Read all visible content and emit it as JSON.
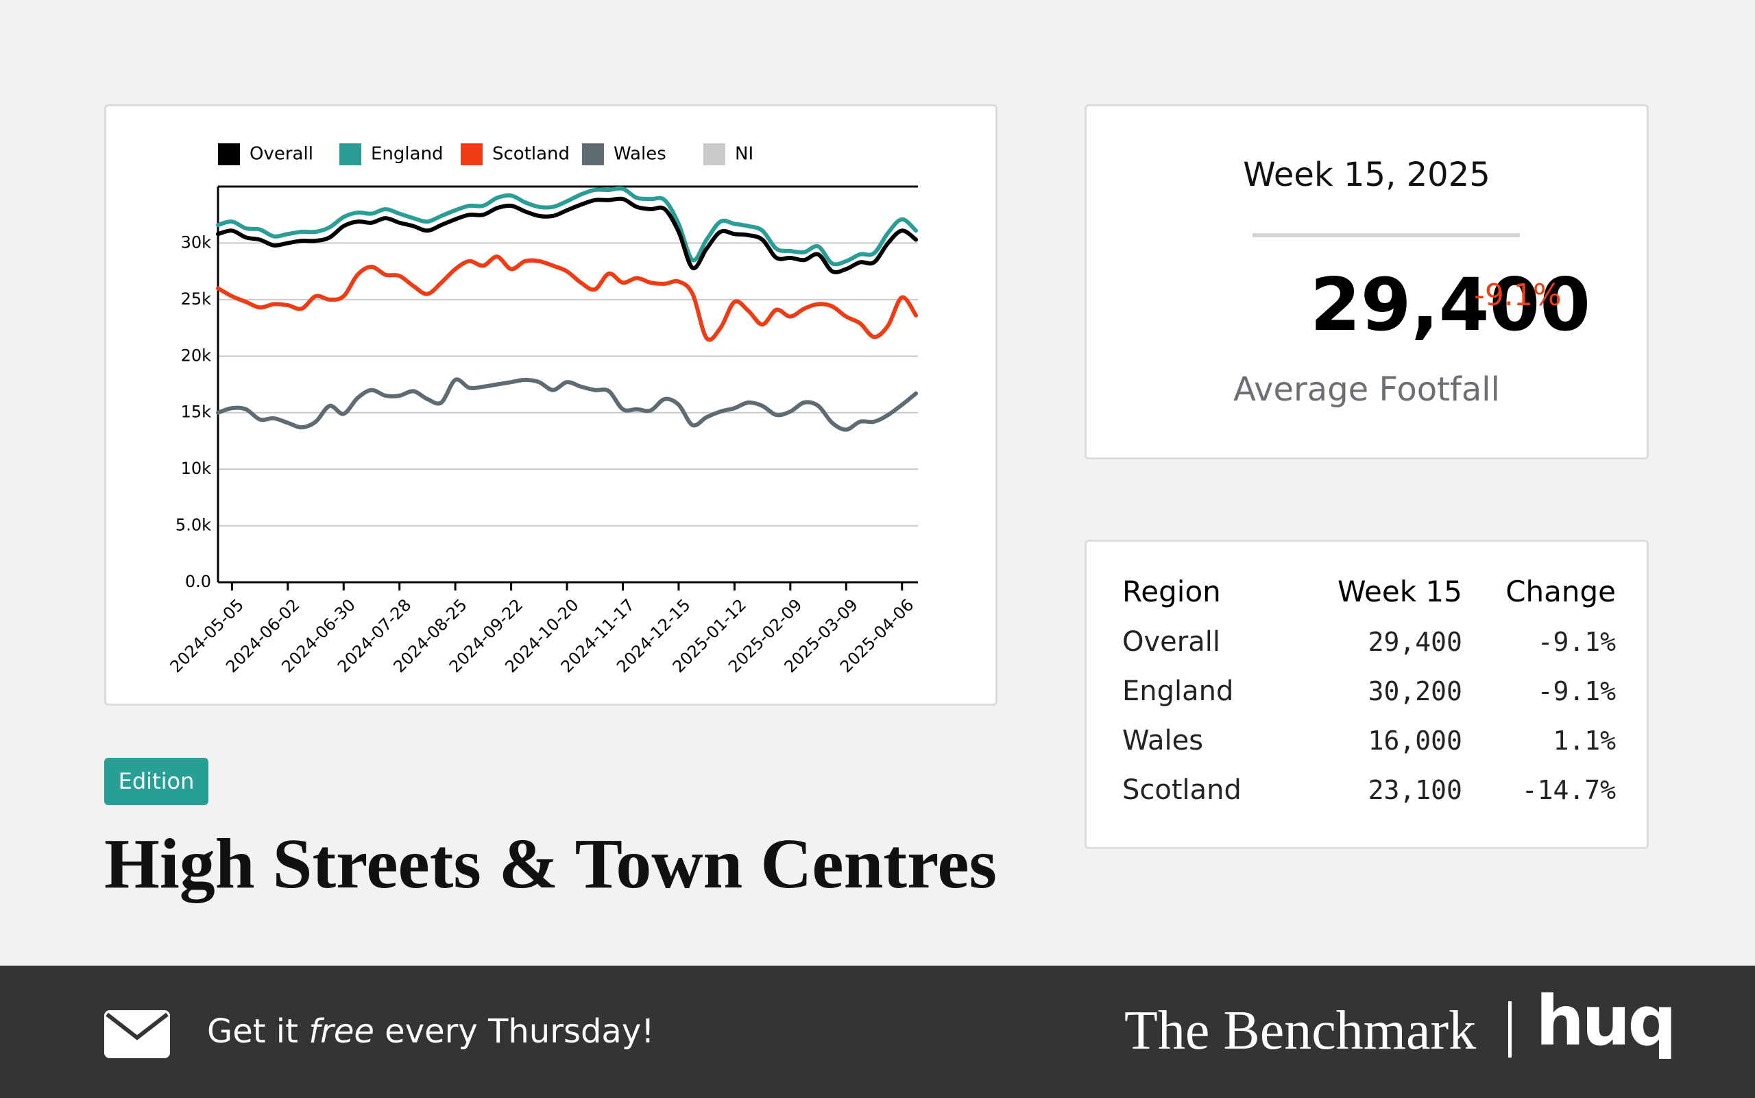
{
  "chart_data": {
    "type": "line",
    "x": [
      "2024-04-28",
      "2024-05-05",
      "2024-05-12",
      "2024-05-19",
      "2024-05-26",
      "2024-06-02",
      "2024-06-09",
      "2024-06-16",
      "2024-06-23",
      "2024-06-30",
      "2024-07-07",
      "2024-07-14",
      "2024-07-21",
      "2024-07-28",
      "2024-08-04",
      "2024-08-11",
      "2024-08-18",
      "2024-08-25",
      "2024-09-01",
      "2024-09-08",
      "2024-09-15",
      "2024-09-22",
      "2024-09-29",
      "2024-10-06",
      "2024-10-13",
      "2024-10-20",
      "2024-10-27",
      "2024-11-03",
      "2024-11-10",
      "2024-11-17",
      "2024-11-24",
      "2024-12-01",
      "2024-12-08",
      "2024-12-15",
      "2024-12-22",
      "2024-12-29",
      "2025-01-05",
      "2025-01-12",
      "2025-01-19",
      "2025-01-26",
      "2025-02-02",
      "2025-02-09",
      "2025-02-16",
      "2025-02-23",
      "2025-03-02",
      "2025-03-09",
      "2025-03-16",
      "2025-03-23",
      "2025-03-30",
      "2025-04-06",
      "2025-04-13"
    ],
    "series": [
      {
        "name": "Overall",
        "color": "#000000",
        "values": [
          30800,
          31100,
          30500,
          30300,
          29800,
          30000,
          30200,
          30200,
          30500,
          31500,
          31900,
          31800,
          32200,
          31800,
          31500,
          31100,
          31600,
          32100,
          32500,
          32500,
          33100,
          33300,
          32800,
          32400,
          32400,
          32900,
          33400,
          33800,
          33800,
          33900,
          33200,
          33000,
          33000,
          31000,
          27800,
          29500,
          31000,
          30800,
          30700,
          30300,
          28700,
          28700,
          28500,
          29000,
          27500,
          27700,
          28300,
          28300,
          30000,
          31100,
          30300
        ]
      },
      {
        "name": "England",
        "color": "#2a9d96",
        "values": [
          31600,
          31900,
          31300,
          31200,
          30600,
          30800,
          31000,
          31000,
          31400,
          32300,
          32700,
          32600,
          33000,
          32600,
          32200,
          31900,
          32400,
          32900,
          33300,
          33300,
          34000,
          34200,
          33600,
          33200,
          33200,
          33700,
          34300,
          34700,
          34700,
          34800,
          34000,
          33900,
          33800,
          31700,
          28500,
          30300,
          31900,
          31700,
          31500,
          31100,
          29500,
          29300,
          29200,
          29700,
          28200,
          28400,
          29000,
          29100,
          30900,
          32100,
          31100
        ]
      },
      {
        "name": "Scotland",
        "color": "#f03c14",
        "values": [
          26000,
          25300,
          24800,
          24300,
          24600,
          24500,
          24200,
          25300,
          25000,
          25300,
          27200,
          27900,
          27200,
          27100,
          26200,
          25500,
          26500,
          27700,
          28400,
          28000,
          28800,
          27700,
          28400,
          28400,
          28000,
          27500,
          26500,
          25900,
          27300,
          26500,
          26900,
          26500,
          26400,
          26600,
          25500,
          21600,
          22500,
          24800,
          24000,
          22800,
          24100,
          23500,
          24200,
          24600,
          24400,
          23500,
          22900,
          21700,
          22700,
          25200,
          23600
        ]
      },
      {
        "name": "Wales",
        "color": "#5f6b73",
        "values": [
          15000,
          15400,
          15300,
          14400,
          14500,
          14100,
          13700,
          14200,
          15600,
          14900,
          16300,
          17000,
          16500,
          16500,
          16900,
          16200,
          15900,
          17900,
          17200,
          17300,
          17500,
          17700,
          17900,
          17700,
          17000,
          17700,
          17300,
          17000,
          16900,
          15300,
          15300,
          15200,
          16200,
          15700,
          13900,
          14600,
          15100,
          15400,
          15900,
          15600,
          14800,
          15100,
          15900,
          15600,
          14100,
          13500,
          14200,
          14200,
          14800,
          15700,
          16700
        ]
      },
      {
        "name": "NI",
        "color": "#c9cbcb",
        "values": [
          null,
          null,
          null,
          null,
          null,
          null,
          null,
          null,
          null,
          null,
          null,
          null,
          null,
          null,
          null,
          null,
          null,
          null,
          null,
          null,
          null,
          null,
          null,
          null,
          null,
          null,
          null,
          null,
          null,
          null,
          null,
          null,
          null,
          null,
          null,
          null,
          null,
          null,
          null,
          null,
          null,
          null,
          null,
          null,
          null,
          null,
          null,
          null,
          null,
          null,
          null
        ]
      }
    ],
    "xlim": [
      "2024-04-28",
      "2025-04-14"
    ],
    "xticks": [
      "2024-05-05",
      "2024-06-02",
      "2024-06-30",
      "2024-07-28",
      "2024-08-25",
      "2024-09-22",
      "2024-10-20",
      "2024-11-17",
      "2024-12-15",
      "2025-01-12",
      "2025-02-09",
      "2025-03-09",
      "2025-04-06"
    ],
    "ylim": [
      0,
      35000
    ],
    "yticks": [
      {
        "value": 0,
        "label": "0.0"
      },
      {
        "value": 5000,
        "label": "5.0k"
      },
      {
        "value": 10000,
        "label": "10k"
      },
      {
        "value": 15000,
        "label": "15k"
      },
      {
        "value": 20000,
        "label": "20k"
      },
      {
        "value": 25000,
        "label": "25k"
      },
      {
        "value": 30000,
        "label": "30k"
      }
    ],
    "grid": true,
    "legend": "top"
  },
  "stats": {
    "period": "Week 15, 2025",
    "value": "29,400",
    "change": "-9.1%",
    "label": "Average Footfall"
  },
  "table": {
    "header": [
      "Region",
      "Week 15",
      "Change"
    ],
    "rows": [
      [
        "Overall",
        "29,400",
        "-9.1%"
      ],
      [
        "England",
        "30,200",
        "-9.1%"
      ],
      [
        "Wales",
        "16,000",
        "1.1%"
      ],
      [
        "Scotland",
        "23,100",
        "-14.7%"
      ]
    ]
  },
  "header": {
    "badge": "Edition",
    "title": "High Streets & Town Centres"
  },
  "footer": {
    "tagline": [
      "Get it ",
      "free",
      " every Thursday!"
    ],
    "brand": "The Benchmark",
    "logo": "huq"
  }
}
